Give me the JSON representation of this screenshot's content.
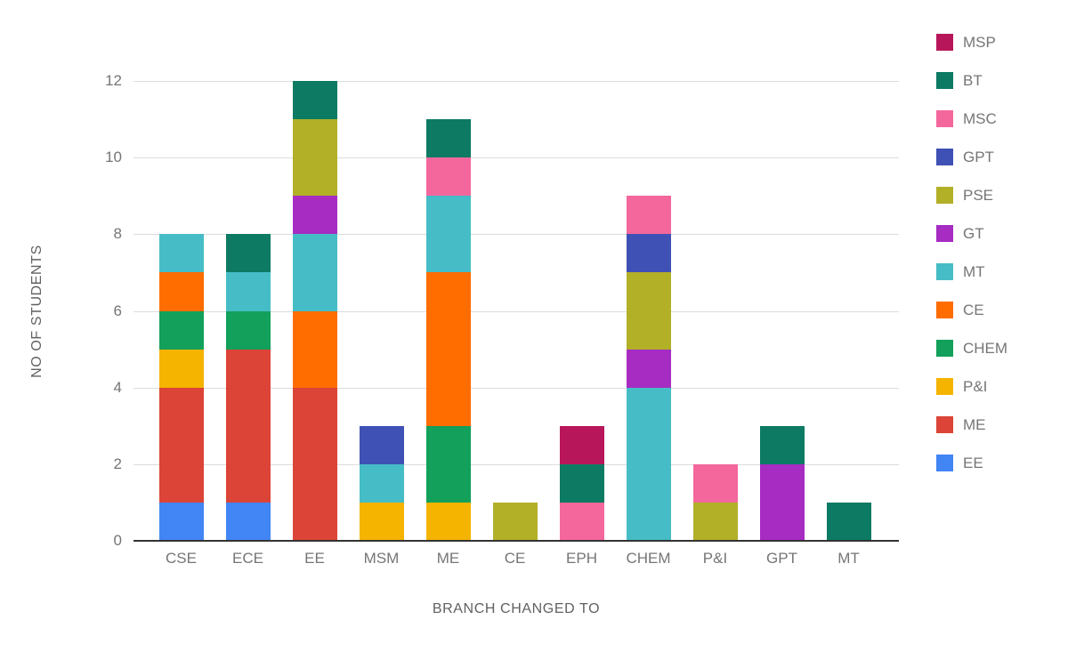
{
  "chart_data": {
    "type": "bar",
    "stacked": true,
    "xlabel": "BRANCH CHANGED TO",
    "ylabel": "NO OF STUDENTS",
    "ylim": [
      0,
      12
    ],
    "yticks": [
      0,
      2,
      4,
      6,
      8,
      10,
      12
    ],
    "grid": true,
    "categories": [
      "CSE",
      "ECE",
      "EE",
      "MSM",
      "ME",
      "CE",
      "EPH",
      "CHEM",
      "P&I",
      "GPT",
      "MT"
    ],
    "series": [
      {
        "name": "EE",
        "color": "#4285F4",
        "values": [
          1,
          1,
          0,
          0,
          0,
          0,
          0,
          0,
          0,
          0,
          0
        ]
      },
      {
        "name": "ME",
        "color": "#DB4437",
        "values": [
          3,
          4,
          4,
          0,
          0,
          0,
          0,
          0,
          0,
          0,
          0
        ]
      },
      {
        "name": "P&I",
        "color": "#F4B400",
        "values": [
          1,
          0,
          0,
          1,
          1,
          0,
          0,
          0,
          0,
          0,
          0
        ]
      },
      {
        "name": "CHEM",
        "color": "#12A05A",
        "values": [
          1,
          1,
          0,
          0,
          2,
          0,
          0,
          0,
          0,
          0,
          0
        ]
      },
      {
        "name": "CE",
        "color": "#FF6D00",
        "values": [
          1,
          0,
          2,
          0,
          4,
          0,
          0,
          0,
          0,
          0,
          0
        ]
      },
      {
        "name": "MT",
        "color": "#46BDC6",
        "values": [
          1,
          1,
          2,
          1,
          2,
          0,
          0,
          4,
          0,
          0,
          0
        ]
      },
      {
        "name": "GT",
        "color": "#A62CC2",
        "values": [
          0,
          0,
          1,
          0,
          0,
          0,
          0,
          1,
          0,
          2,
          0
        ]
      },
      {
        "name": "PSE",
        "color": "#B2B027",
        "values": [
          0,
          0,
          2,
          0,
          0,
          1,
          0,
          2,
          1,
          0,
          0
        ]
      },
      {
        "name": "GPT",
        "color": "#3F51B5",
        "values": [
          0,
          0,
          0,
          1,
          0,
          0,
          0,
          1,
          0,
          0,
          0
        ]
      },
      {
        "name": "MSC",
        "color": "#F4679C",
        "values": [
          0,
          0,
          0,
          0,
          1,
          0,
          1,
          1,
          1,
          0,
          0
        ]
      },
      {
        "name": "BT",
        "color": "#0D7A63",
        "values": [
          0,
          1,
          1,
          0,
          1,
          0,
          1,
          0,
          0,
          1,
          1
        ]
      },
      {
        "name": "MSP",
        "color": "#B8165B",
        "values": [
          0,
          0,
          0,
          0,
          0,
          0,
          1,
          0,
          0,
          0,
          0
        ]
      }
    ],
    "legend": {
      "position": "right",
      "order_top_to_bottom": [
        "MSP",
        "BT",
        "MSC",
        "GPT",
        "PSE",
        "GT",
        "MT",
        "CE",
        "CHEM",
        "P&I",
        "ME",
        "EE"
      ]
    }
  }
}
